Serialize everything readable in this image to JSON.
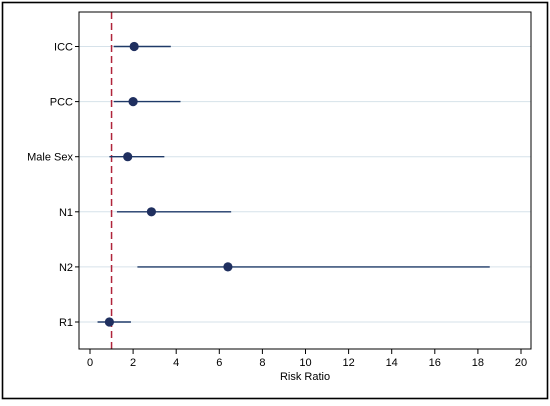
{
  "chart_data": {
    "type": "forest",
    "xlabel": "Risk Ratio",
    "xlim": [
      0,
      20
    ],
    "xticks": [
      0,
      2,
      4,
      6,
      8,
      10,
      12,
      14,
      16,
      18,
      20
    ],
    "xtick_labels": [
      "0",
      "2",
      "4",
      "6",
      "8",
      "10",
      "12",
      "14",
      "16",
      "18",
      "20"
    ],
    "reference_line": 1,
    "grid": true,
    "rows": [
      {
        "label": "ICC",
        "estimate": 2.05,
        "lower": 1.1,
        "upper": 3.75
      },
      {
        "label": "PCC",
        "estimate": 2.0,
        "lower": 1.1,
        "upper": 4.2
      },
      {
        "label": "Male Sex",
        "estimate": 1.75,
        "lower": 0.9,
        "upper": 3.45
      },
      {
        "label": "N1",
        "estimate": 2.85,
        "lower": 1.25,
        "upper": 6.55
      },
      {
        "label": "N2",
        "estimate": 6.4,
        "lower": 2.2,
        "upper": 18.55
      },
      {
        "label": "R1",
        "estimate": 0.9,
        "lower": 0.35,
        "upper": 1.9
      }
    ],
    "colors": {
      "marker": "#1f2f5f",
      "ci_line": "#1f3a68",
      "reference": "#b0243a",
      "grid": "#d6e2ea",
      "border": "#000000"
    }
  }
}
